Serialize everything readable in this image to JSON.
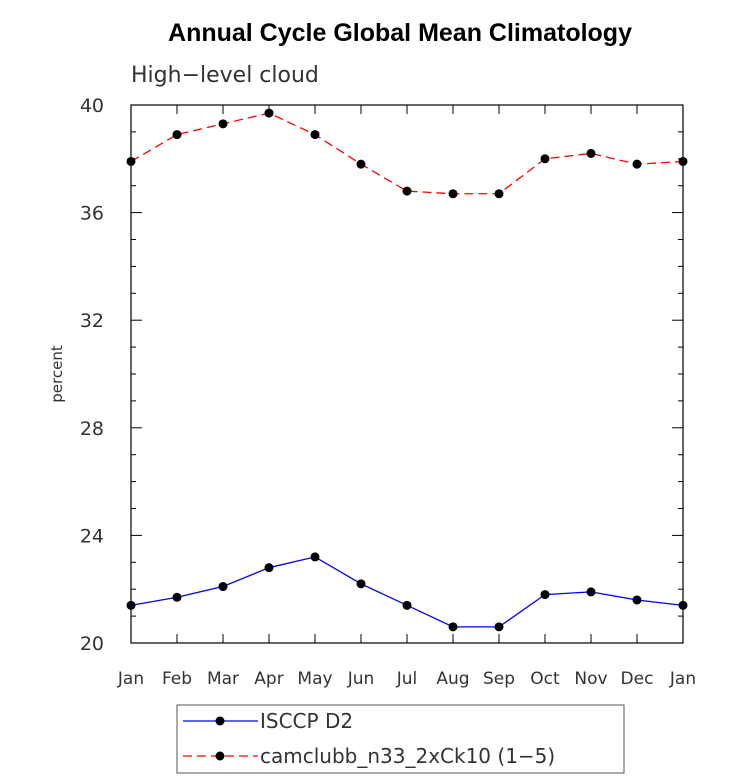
{
  "chart_data": {
    "type": "line",
    "title": "Annual Cycle Global Mean Climatology",
    "subtitle": "High−level cloud",
    "xlabel": "",
    "ylabel": "percent",
    "categories": [
      "Jan",
      "Feb",
      "Mar",
      "Apr",
      "May",
      "Jun",
      "Jul",
      "Aug",
      "Sep",
      "Oct",
      "Nov",
      "Dec",
      "Jan"
    ],
    "ylim": [
      20,
      40
    ],
    "yticks": [
      20,
      24,
      28,
      32,
      36,
      40
    ],
    "ytick_labels": [
      "20",
      "24",
      "28",
      "32",
      "36",
      "40"
    ],
    "grid": false,
    "legend_position": "bottom-center",
    "series": [
      {
        "name": "ISCCP D2",
        "color": "#0000ff",
        "line_style": "solid",
        "marker": "filled-circle",
        "values": [
          21.4,
          21.7,
          22.1,
          22.8,
          23.2,
          22.2,
          21.4,
          20.6,
          20.6,
          21.8,
          21.9,
          21.6,
          21.4
        ]
      },
      {
        "name": "camclubb_n33_2xCk10 (1−5)",
        "color": "#ff0000",
        "line_style": "dashed",
        "marker": "filled-circle",
        "values": [
          37.9,
          38.9,
          39.3,
          39.7,
          38.9,
          37.8,
          36.8,
          36.7,
          36.7,
          38.0,
          38.2,
          37.8,
          37.9
        ]
      }
    ]
  }
}
